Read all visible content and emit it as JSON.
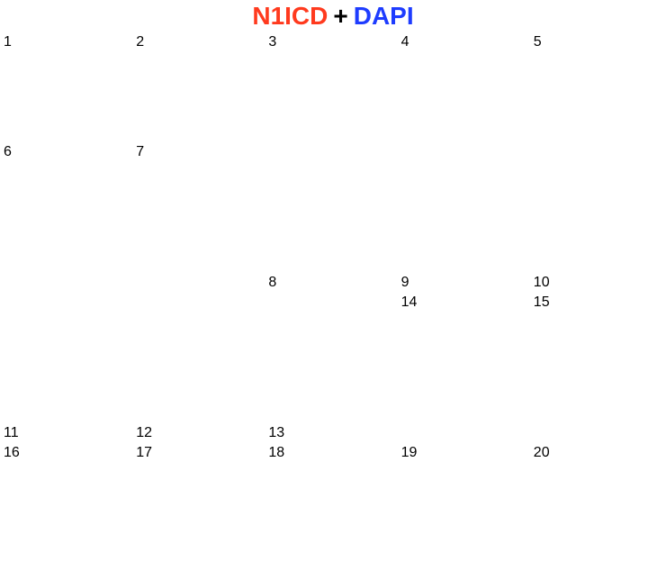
{
  "title": {
    "parts": [
      {
        "text": "N1ICD",
        "color": "#ff3a1e"
      },
      {
        "text": "+",
        "color": "#000000"
      },
      {
        "text": "DAPI",
        "color": "#1e3cff"
      }
    ]
  },
  "panels": [
    {
      "label": "1"
    },
    {
      "label": "2"
    },
    {
      "label": "3"
    },
    {
      "label": "4"
    },
    {
      "label": "5"
    },
    {
      "label": "6"
    },
    {
      "label": "7"
    },
    {
      "label": "8",
      "arrowhead": true
    },
    {
      "label": "9",
      "arrowhead": true
    },
    {
      "label": "10",
      "arrowhead": true
    },
    {
      "label": "11",
      "arrowhead": true
    },
    {
      "label": "12",
      "arrowhead": true
    },
    {
      "label": "13",
      "arrowhead": true
    },
    {
      "label": "14"
    },
    {
      "label": "15"
    },
    {
      "label": "16"
    },
    {
      "label": "17"
    },
    {
      "label": "18"
    },
    {
      "label": "19"
    },
    {
      "label": "20",
      "scale_bar": true
    }
  ]
}
